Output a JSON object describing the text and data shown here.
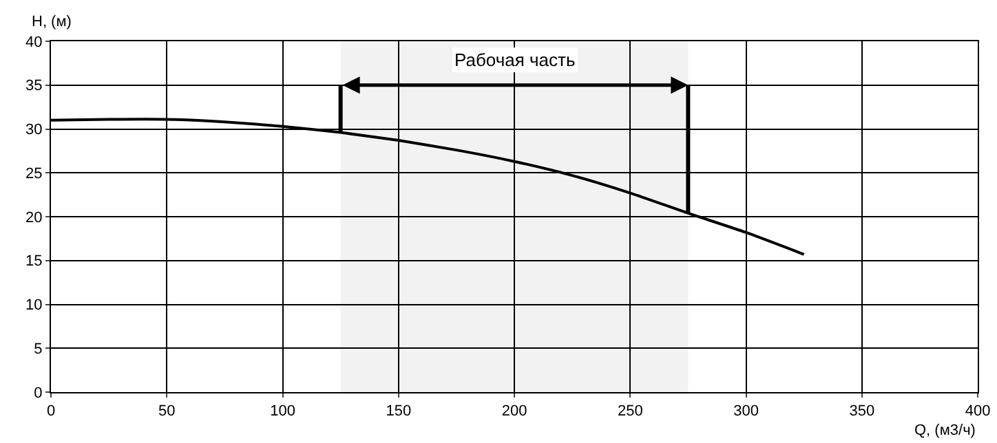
{
  "chart_data": {
    "type": "line",
    "xlabel": "Q, (м3/ч)",
    "ylabel": "H, (м)",
    "x": [
      0,
      25,
      50,
      75,
      100,
      125,
      150,
      175,
      200,
      225,
      250,
      275,
      300,
      325
    ],
    "series": [
      {
        "color": "#000000",
        "values": [
          31.0,
          31.1,
          31.1,
          30.8,
          30.3,
          29.6,
          28.7,
          27.6,
          26.3,
          24.7,
          22.7,
          20.4,
          18.2,
          15.7
        ]
      }
    ],
    "xlim": [
      0,
      400
    ],
    "xticks": [
      0,
      50,
      100,
      150,
      200,
      250,
      300,
      350,
      400
    ],
    "ylim": [
      0,
      40
    ],
    "yticks": [
      0,
      5,
      10,
      15,
      20,
      25,
      30,
      35,
      40
    ],
    "grid": true,
    "marker": "none",
    "line_style": "solid",
    "bands": [
      {
        "axis": "x",
        "from": 125,
        "to": 275,
        "label": "Рабочая часть"
      }
    ]
  }
}
